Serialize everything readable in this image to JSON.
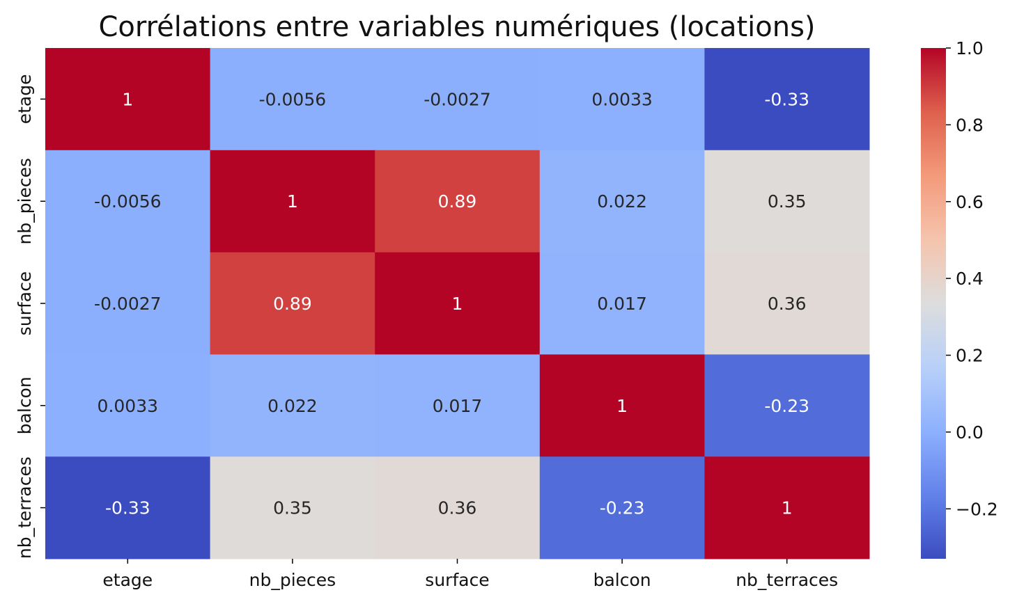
{
  "chart_data": {
    "type": "heatmap",
    "title": "Corrélations entre variables numériques (locations)",
    "xlabel": "",
    "ylabel": "",
    "x_categories": [
      "etage",
      "nb_pieces",
      "surface",
      "balcon",
      "nb_terraces"
    ],
    "y_categories": [
      "etage",
      "nb_pieces",
      "surface",
      "balcon",
      "nb_terraces"
    ],
    "values": [
      [
        1,
        -0.0056,
        -0.0027,
        0.0033,
        -0.33
      ],
      [
        -0.0056,
        1,
        0.89,
        0.022,
        0.35
      ],
      [
        -0.0027,
        0.89,
        1,
        0.017,
        0.36
      ],
      [
        0.0033,
        0.022,
        0.017,
        1,
        -0.23
      ],
      [
        -0.33,
        0.35,
        0.36,
        -0.23,
        1
      ]
    ],
    "annotations": [
      [
        "1",
        "-0.0056",
        "-0.0027",
        "0.0033",
        "-0.33"
      ],
      [
        "-0.0056",
        "1",
        "0.89",
        "0.022",
        "0.35"
      ],
      [
        "-0.0027",
        "0.89",
        "1",
        "0.017",
        "0.36"
      ],
      [
        "0.0033",
        "0.022",
        "0.017",
        "1",
        "-0.23"
      ],
      [
        "-0.33",
        "0.35",
        "0.36",
        "-0.23",
        "1"
      ]
    ],
    "colormap": "coolwarm",
    "colorbar": {
      "range": [
        -0.33,
        1.0
      ],
      "ticks": [
        1.0,
        0.8,
        0.6,
        0.4,
        0.2,
        0.0,
        -0.2
      ],
      "tick_labels": [
        "1.0",
        "0.8",
        "0.6",
        "0.4",
        "0.2",
        "0.0",
        "−0.2"
      ],
      "position": "right"
    },
    "grid": false,
    "legend": "none"
  }
}
